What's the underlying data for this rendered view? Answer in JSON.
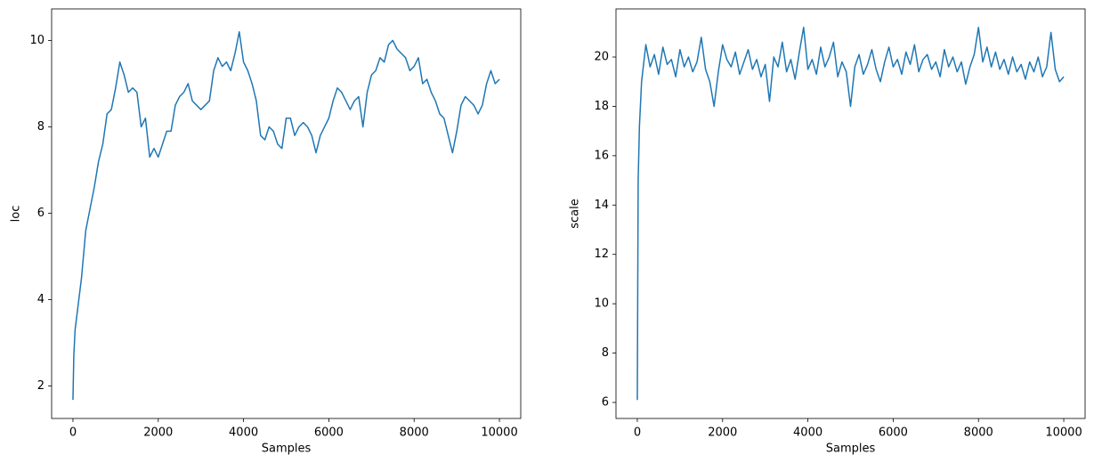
{
  "chart_data": [
    {
      "type": "line",
      "xlabel": "Samples",
      "ylabel": "loc",
      "color": "#1f77b4",
      "xlim": [
        -500,
        10500
      ],
      "ylim": [
        1.25,
        10.73
      ],
      "xticks": [
        0,
        2000,
        4000,
        6000,
        8000,
        10000
      ],
      "yticks": [
        2,
        4,
        6,
        8,
        10
      ],
      "x": [
        0,
        20,
        50,
        100,
        200,
        300,
        400,
        500,
        600,
        700,
        800,
        900,
        1000,
        1100,
        1200,
        1300,
        1400,
        1500,
        1600,
        1700,
        1800,
        1900,
        2000,
        2100,
        2200,
        2300,
        2400,
        2500,
        2600,
        2700,
        2800,
        2900,
        3000,
        3100,
        3200,
        3300,
        3400,
        3500,
        3600,
        3700,
        3800,
        3900,
        4000,
        4100,
        4200,
        4300,
        4400,
        4500,
        4600,
        4700,
        4800,
        4900,
        5000,
        5100,
        5200,
        5300,
        5400,
        5500,
        5600,
        5700,
        5800,
        5900,
        6000,
        6100,
        6200,
        6300,
        6400,
        6500,
        6600,
        6700,
        6800,
        6900,
        7000,
        7100,
        7200,
        7300,
        7400,
        7500,
        7600,
        7700,
        7800,
        7900,
        8000,
        8100,
        8200,
        8300,
        8400,
        8500,
        8600,
        8700,
        8800,
        8900,
        9000,
        9100,
        9200,
        9300,
        9400,
        9500,
        9600,
        9700,
        9800,
        9900,
        10000
      ],
      "values": [
        1.68,
        2.7,
        3.3,
        3.7,
        4.5,
        5.6,
        6.1,
        6.6,
        7.2,
        7.6,
        8.3,
        8.4,
        8.9,
        9.5,
        9.2,
        8.8,
        8.9,
        8.8,
        8.0,
        8.2,
        7.3,
        7.5,
        7.3,
        7.6,
        7.9,
        7.9,
        8.5,
        8.7,
        8.8,
        9.0,
        8.6,
        8.5,
        8.4,
        8.5,
        8.6,
        9.3,
        9.6,
        9.4,
        9.5,
        9.3,
        9.7,
        10.2,
        9.5,
        9.3,
        9.0,
        8.6,
        7.8,
        7.7,
        8.0,
        7.9,
        7.6,
        7.5,
        8.2,
        8.2,
        7.8,
        8.0,
        8.1,
        8.0,
        7.8,
        7.4,
        7.8,
        8.0,
        8.2,
        8.6,
        8.9,
        8.8,
        8.6,
        8.4,
        8.6,
        8.7,
        8.0,
        8.8,
        9.2,
        9.3,
        9.6,
        9.5,
        9.9,
        10.0,
        9.8,
        9.7,
        9.6,
        9.3,
        9.4,
        9.6,
        9.0,
        9.1,
        8.8,
        8.6,
        8.3,
        8.2,
        7.8,
        7.4,
        7.9,
        8.5,
        8.7,
        8.6,
        8.5,
        8.3,
        8.5,
        9.0,
        9.3,
        9.0,
        9.1
      ]
    },
    {
      "type": "line",
      "xlabel": "Samples",
      "ylabel": "scale",
      "color": "#1f77b4",
      "xlim": [
        -500,
        10500
      ],
      "ylim": [
        5.35,
        21.95
      ],
      "xticks": [
        0,
        2000,
        4000,
        6000,
        8000,
        10000
      ],
      "yticks": [
        6,
        8,
        10,
        12,
        14,
        16,
        18,
        20
      ],
      "x": [
        0,
        20,
        50,
        100,
        200,
        300,
        400,
        500,
        600,
        700,
        800,
        900,
        1000,
        1100,
        1200,
        1300,
        1400,
        1500,
        1600,
        1700,
        1800,
        1900,
        2000,
        2100,
        2200,
        2300,
        2400,
        2500,
        2600,
        2700,
        2800,
        2900,
        3000,
        3100,
        3200,
        3300,
        3400,
        3500,
        3600,
        3700,
        3800,
        3900,
        4000,
        4100,
        4200,
        4300,
        4400,
        4500,
        4600,
        4700,
        4800,
        4900,
        5000,
        5100,
        5200,
        5300,
        5400,
        5500,
        5600,
        5700,
        5800,
        5900,
        6000,
        6100,
        6200,
        6300,
        6400,
        6500,
        6600,
        6700,
        6800,
        6900,
        7000,
        7100,
        7200,
        7300,
        7400,
        7500,
        7600,
        7700,
        7800,
        7900,
        8000,
        8100,
        8200,
        8300,
        8400,
        8500,
        8600,
        8700,
        8800,
        8900,
        9000,
        9100,
        9200,
        9300,
        9400,
        9500,
        9600,
        9700,
        9800,
        9900,
        10000
      ],
      "values": [
        6.1,
        15,
        17.2,
        19.0,
        20.5,
        19.6,
        20.1,
        19.3,
        20.4,
        19.7,
        19.9,
        19.2,
        20.3,
        19.6,
        20.0,
        19.4,
        19.8,
        20.8,
        19.5,
        19.0,
        18.0,
        19.4,
        20.5,
        19.9,
        19.6,
        20.2,
        19.3,
        19.8,
        20.3,
        19.5,
        19.9,
        19.2,
        19.7,
        18.2,
        20.0,
        19.6,
        20.6,
        19.4,
        19.9,
        19.1,
        20.2,
        21.2,
        19.5,
        19.9,
        19.3,
        20.4,
        19.6,
        20.0,
        20.6,
        19.2,
        19.8,
        19.4,
        18.0,
        19.6,
        20.1,
        19.3,
        19.7,
        20.3,
        19.5,
        19.0,
        19.8,
        20.4,
        19.6,
        19.9,
        19.3,
        20.2,
        19.7,
        20.5,
        19.4,
        19.9,
        20.1,
        19.5,
        19.8,
        19.2,
        20.3,
        19.6,
        20.0,
        19.4,
        19.8,
        18.9,
        19.6,
        20.1,
        21.2,
        19.8,
        20.4,
        19.6,
        20.2,
        19.5,
        19.9,
        19.3,
        20.0,
        19.4,
        19.7,
        19.1,
        19.8,
        19.4,
        20.0,
        19.2,
        19.6,
        21.0,
        19.5,
        19.0,
        19.2
      ]
    }
  ]
}
